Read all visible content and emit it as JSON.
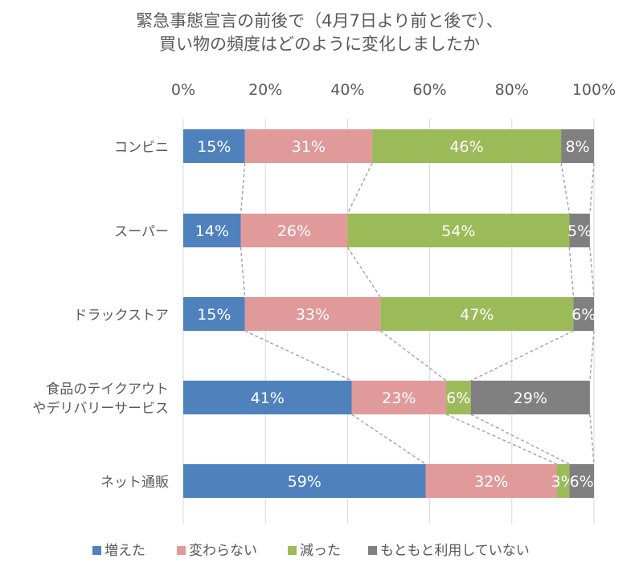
{
  "title": {
    "line1": "緊急事態宣言の前後で（4月7日より前と後で）、",
    "line2": "買い物の頻度はどのように変化しましたか"
  },
  "chart_data": {
    "type": "bar",
    "orientation": "horizontal",
    "stacked": "percent",
    "categories": [
      "コンビニ",
      "スーパー",
      "ドラックストア",
      "食品のテイクアウト\nやデリバリーサービス",
      "ネット通販"
    ],
    "series": [
      {
        "name": "増えた",
        "color": "#4f81bd",
        "values": [
          15,
          14,
          15,
          41,
          59
        ]
      },
      {
        "name": "変わらない",
        "color": "#e09a9a",
        "values": [
          31,
          26,
          33,
          23,
          32
        ]
      },
      {
        "name": "減った",
        "color": "#9bbb59",
        "values": [
          46,
          54,
          47,
          6,
          3
        ]
      },
      {
        "name": "もともと利用していない",
        "color": "#808080",
        "values": [
          8,
          5,
          6,
          29,
          6
        ]
      }
    ],
    "xlim": [
      0,
      100
    ],
    "x_ticks": [
      "0%",
      "20%",
      "40%",
      "60%",
      "80%",
      "100%"
    ],
    "value_suffix": "%",
    "legend_position": "bottom",
    "series_lines": true,
    "grid": true
  }
}
